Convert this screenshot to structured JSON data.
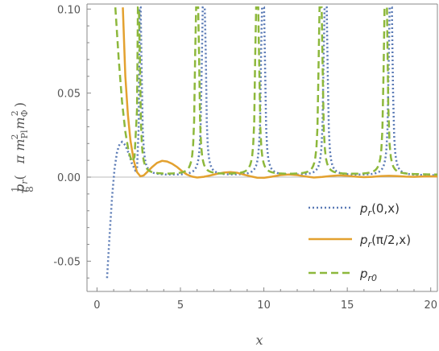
{
  "chart_data": {
    "type": "line",
    "xlabel": "x",
    "ylabel": "p_r(1/8 π m_Pl^2 m_Φ^2)",
    "ylabel_parts": {
      "p": "p",
      "r": "r",
      "one": "1",
      "eight": "8",
      "pi": "π m",
      "pl": "Pl",
      "two": "2",
      "m": "m",
      "phi": "Φ",
      "two2": "2"
    },
    "xlim": [
      -0.6,
      20.4
    ],
    "ylim": [
      -0.068,
      0.103
    ],
    "x_ticks": [
      0,
      5,
      10,
      15,
      20
    ],
    "x_tick_labels": [
      "0",
      "5",
      "10",
      "15",
      "20"
    ],
    "y_ticks": [
      -0.05,
      0,
      0.05,
      0.1
    ],
    "y_tick_labels": [
      "-0.05",
      "0.00",
      "0.05",
      "0.10"
    ],
    "legend_position": "bottom-right",
    "series": [
      {
        "name": "p_r(0,x)",
        "label": {
          "p": "p",
          "sub": "r",
          "rest": "(0,x)"
        },
        "style": "dotted",
        "color": "#5a7ab5",
        "points": [
          [
            0.6,
            -0.06
          ],
          [
            0.75,
            -0.035
          ],
          [
            0.9,
            -0.012
          ],
          [
            1.05,
            0.005
          ],
          [
            1.2,
            0.015
          ],
          [
            1.35,
            0.0195
          ],
          [
            1.5,
            0.021
          ],
          [
            1.7,
            0.019
          ],
          [
            1.9,
            0.014
          ],
          [
            2.1,
            0.008
          ],
          [
            2.3,
            0.004
          ],
          [
            2.4,
            0.005
          ],
          [
            2.5,
            0.03
          ],
          [
            2.55,
            0.101
          ]
        ],
        "peaks": [
          2.55,
          6.4,
          9.95,
          13.7,
          17.6
        ],
        "trough_min": 0.001
      },
      {
        "name": "p_r(π/2,x)",
        "label": {
          "p": "p",
          "sub": "r",
          "rest": "(π/2,x)"
        },
        "style": "solid",
        "color": "#e3a12f",
        "points": [
          [
            1.55,
            0.101
          ],
          [
            1.7,
            0.06
          ],
          [
            1.85,
            0.037
          ],
          [
            2.0,
            0.022
          ],
          [
            2.2,
            0.01
          ],
          [
            2.4,
            0.003
          ],
          [
            2.6,
            0.0005
          ],
          [
            2.8,
            0.001
          ],
          [
            3.0,
            0.003
          ],
          [
            3.3,
            0.006
          ],
          [
            3.6,
            0.0085
          ],
          [
            3.9,
            0.0097
          ],
          [
            4.2,
            0.0093
          ],
          [
            4.5,
            0.008
          ],
          [
            4.8,
            0.006
          ],
          [
            5.1,
            0.0035
          ],
          [
            5.4,
            0.0015
          ],
          [
            5.7,
            0.0003
          ],
          [
            6.0,
            -0.0002
          ],
          [
            6.4,
            0.0002
          ],
          [
            6.8,
            0.001
          ],
          [
            7.2,
            0.002
          ],
          [
            7.6,
            0.0027
          ],
          [
            8.0,
            0.003
          ],
          [
            8.4,
            0.0026
          ],
          [
            8.8,
            0.0015
          ],
          [
            9.2,
            0.0005
          ],
          [
            9.6,
            -0.0003
          ],
          [
            10.0,
            -0.0004
          ],
          [
            10.5,
            0.0003
          ],
          [
            11.0,
            0.0012
          ],
          [
            11.5,
            0.0016
          ],
          [
            12.0,
            0.0012
          ],
          [
            12.5,
            0.0004
          ],
          [
            13.0,
            -0.0002
          ],
          [
            13.5,
            0.0001
          ],
          [
            14.0,
            0.0007
          ],
          [
            14.5,
            0.001
          ],
          [
            15.0,
            0.0008
          ],
          [
            15.5,
            0.0003
          ],
          [
            16.0,
            0.0
          ],
          [
            16.5,
            0.0002
          ],
          [
            17.0,
            0.0006
          ],
          [
            17.5,
            0.0008
          ],
          [
            18.0,
            0.0006
          ],
          [
            18.5,
            0.0003
          ],
          [
            19.0,
            0.0002
          ],
          [
            19.5,
            0.0004
          ],
          [
            20.0,
            0.0005
          ],
          [
            20.4,
            0.0004
          ]
        ]
      },
      {
        "name": "p_r0",
        "label": {
          "p": "p",
          "sub": "r0",
          "rest": ""
        },
        "style": "dashed",
        "color": "#8db83c",
        "points": [
          [
            1.1,
            0.101
          ],
          [
            1.3,
            0.07
          ],
          [
            1.5,
            0.045
          ],
          [
            1.7,
            0.027
          ],
          [
            1.9,
            0.015
          ],
          [
            2.1,
            0.009
          ],
          [
            2.25,
            0.012
          ],
          [
            2.4,
            0.04
          ],
          [
            2.45,
            0.101
          ]
        ],
        "peaks": [
          2.45,
          6.0,
          9.6,
          13.4,
          17.3
        ],
        "trough_min": 0.0015
      }
    ]
  }
}
